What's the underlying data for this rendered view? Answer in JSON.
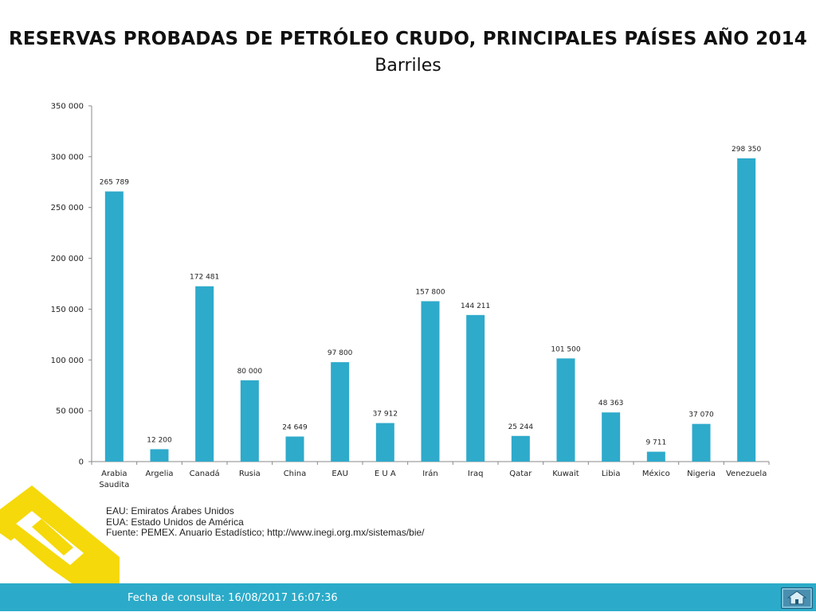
{
  "title": "RESERVAS PROBADAS DE PETRÓLEO CRUDO, PRINCIPALES PAÍSES AÑO 2014",
  "subtitle": "Barriles",
  "chart_data": {
    "type": "bar",
    "categories": [
      "Arabia Saudita",
      "Argelia",
      "Canadá",
      "Rusia",
      "China",
      "EAU",
      "E U A",
      "Irán",
      "Iraq",
      "Qatar",
      "Kuwait",
      "Libia",
      "México",
      "Nigeria",
      "Venezuela"
    ],
    "category_lines": [
      [
        "Arabia",
        "Saudita"
      ],
      [
        "Argelia"
      ],
      [
        "Canadá"
      ],
      [
        "Rusia"
      ],
      [
        "China"
      ],
      [
        "EAU"
      ],
      [
        "E U A"
      ],
      [
        "Irán"
      ],
      [
        "Iraq"
      ],
      [
        "Qatar"
      ],
      [
        "Kuwait"
      ],
      [
        "Libia"
      ],
      [
        "México"
      ],
      [
        "Nigeria"
      ],
      [
        "Venezuela"
      ]
    ],
    "values": [
      265789,
      12200,
      172481,
      80000,
      24649,
      97800,
      37912,
      157800,
      144211,
      25244,
      101500,
      48363,
      9711,
      37070,
      298350
    ],
    "value_labels": [
      "265 789",
      "12 200",
      "172 481",
      "80 000",
      "24 649",
      "97 800",
      "37 912",
      "157 800",
      "144 211",
      "25 244",
      "101 500",
      "48 363",
      "9 711",
      "37 070",
      "298 350"
    ],
    "ylim": [
      0,
      350000
    ],
    "yticks": [
      0,
      50000,
      100000,
      150000,
      200000,
      250000,
      300000,
      350000
    ],
    "ytick_labels": [
      "0",
      "50 000",
      "100 000",
      "150 000",
      "200 000",
      "250 000",
      "300 000",
      "350 000"
    ],
    "bar_color": "#2eaacb",
    "grid": false,
    "xlabel": "",
    "ylabel": ""
  },
  "notes": {
    "line1": "EAU: Emiratos Árabes Unidos",
    "line2": "EUA: Estado Unidos de América",
    "line3": "Fuente: PEMEX. Anuario Estadístico; http://www.inegi.org.mx/sistemas/bie/"
  },
  "footer": {
    "consult_text": "Fecha de consulta: 16/08/2017 16:07:36",
    "home_icon": "home-icon"
  },
  "colors": {
    "footer_bg": "#2babc9",
    "logo_yellow": "#f5d90a"
  }
}
